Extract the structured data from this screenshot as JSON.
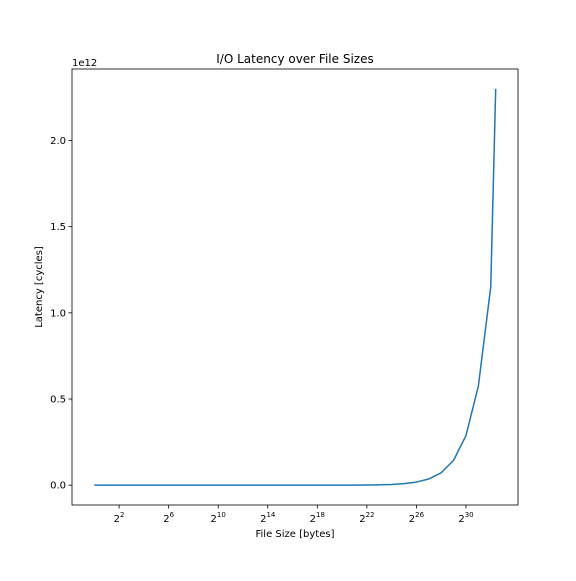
{
  "chart_data": {
    "type": "line",
    "title": "I/O Latency over File Sizes",
    "xlabel": "File Size [bytes]",
    "ylabel": "Latency [cycles]",
    "x_scale": "log2",
    "y_offset_text": "1e12",
    "xlim_exponent": [
      -1.8,
      34.2
    ],
    "ylim": [
      -0.115,
      2.415
    ],
    "x_ticks": [
      {
        "base": "2",
        "exp": "2",
        "value": 2
      },
      {
        "base": "2",
        "exp": "6",
        "value": 6
      },
      {
        "base": "2",
        "exp": "10",
        "value": 10
      },
      {
        "base": "2",
        "exp": "14",
        "value": 14
      },
      {
        "base": "2",
        "exp": "18",
        "value": 18
      },
      {
        "base": "2",
        "exp": "22",
        "value": 22
      },
      {
        "base": "2",
        "exp": "26",
        "value": 26
      },
      {
        "base": "2",
        "exp": "30",
        "value": 30
      }
    ],
    "y_ticks": [
      {
        "label": "0.0",
        "value": 0.0
      },
      {
        "label": "0.5",
        "value": 0.5
      },
      {
        "label": "1.0",
        "value": 1.0
      },
      {
        "label": "1.5",
        "value": 1.5
      },
      {
        "label": "2.0",
        "value": 2.0
      }
    ],
    "grid": false,
    "series": [
      {
        "color": "#1f77b4",
        "x_exponent": [
          0,
          1,
          2,
          3,
          4,
          5,
          6,
          7,
          8,
          9,
          10,
          11,
          12,
          13,
          14,
          15,
          16,
          17,
          18,
          19,
          20,
          21,
          22,
          23,
          24,
          25,
          26,
          27,
          28,
          29,
          30,
          31,
          32,
          32.4
        ],
        "y": [
          0.0,
          0.0,
          0.0,
          0.0,
          0.0,
          0.0,
          0.0,
          0.0,
          0.0,
          0.0,
          0.0,
          0.0,
          0.0,
          0.0,
          0.0,
          0.0,
          0.0,
          0.0,
          0.0,
          0.0,
          0.0,
          0.0,
          0.001,
          0.002,
          0.004,
          0.009,
          0.018,
          0.036,
          0.072,
          0.144,
          0.288,
          0.575,
          1.15,
          2.3
        ]
      }
    ]
  }
}
